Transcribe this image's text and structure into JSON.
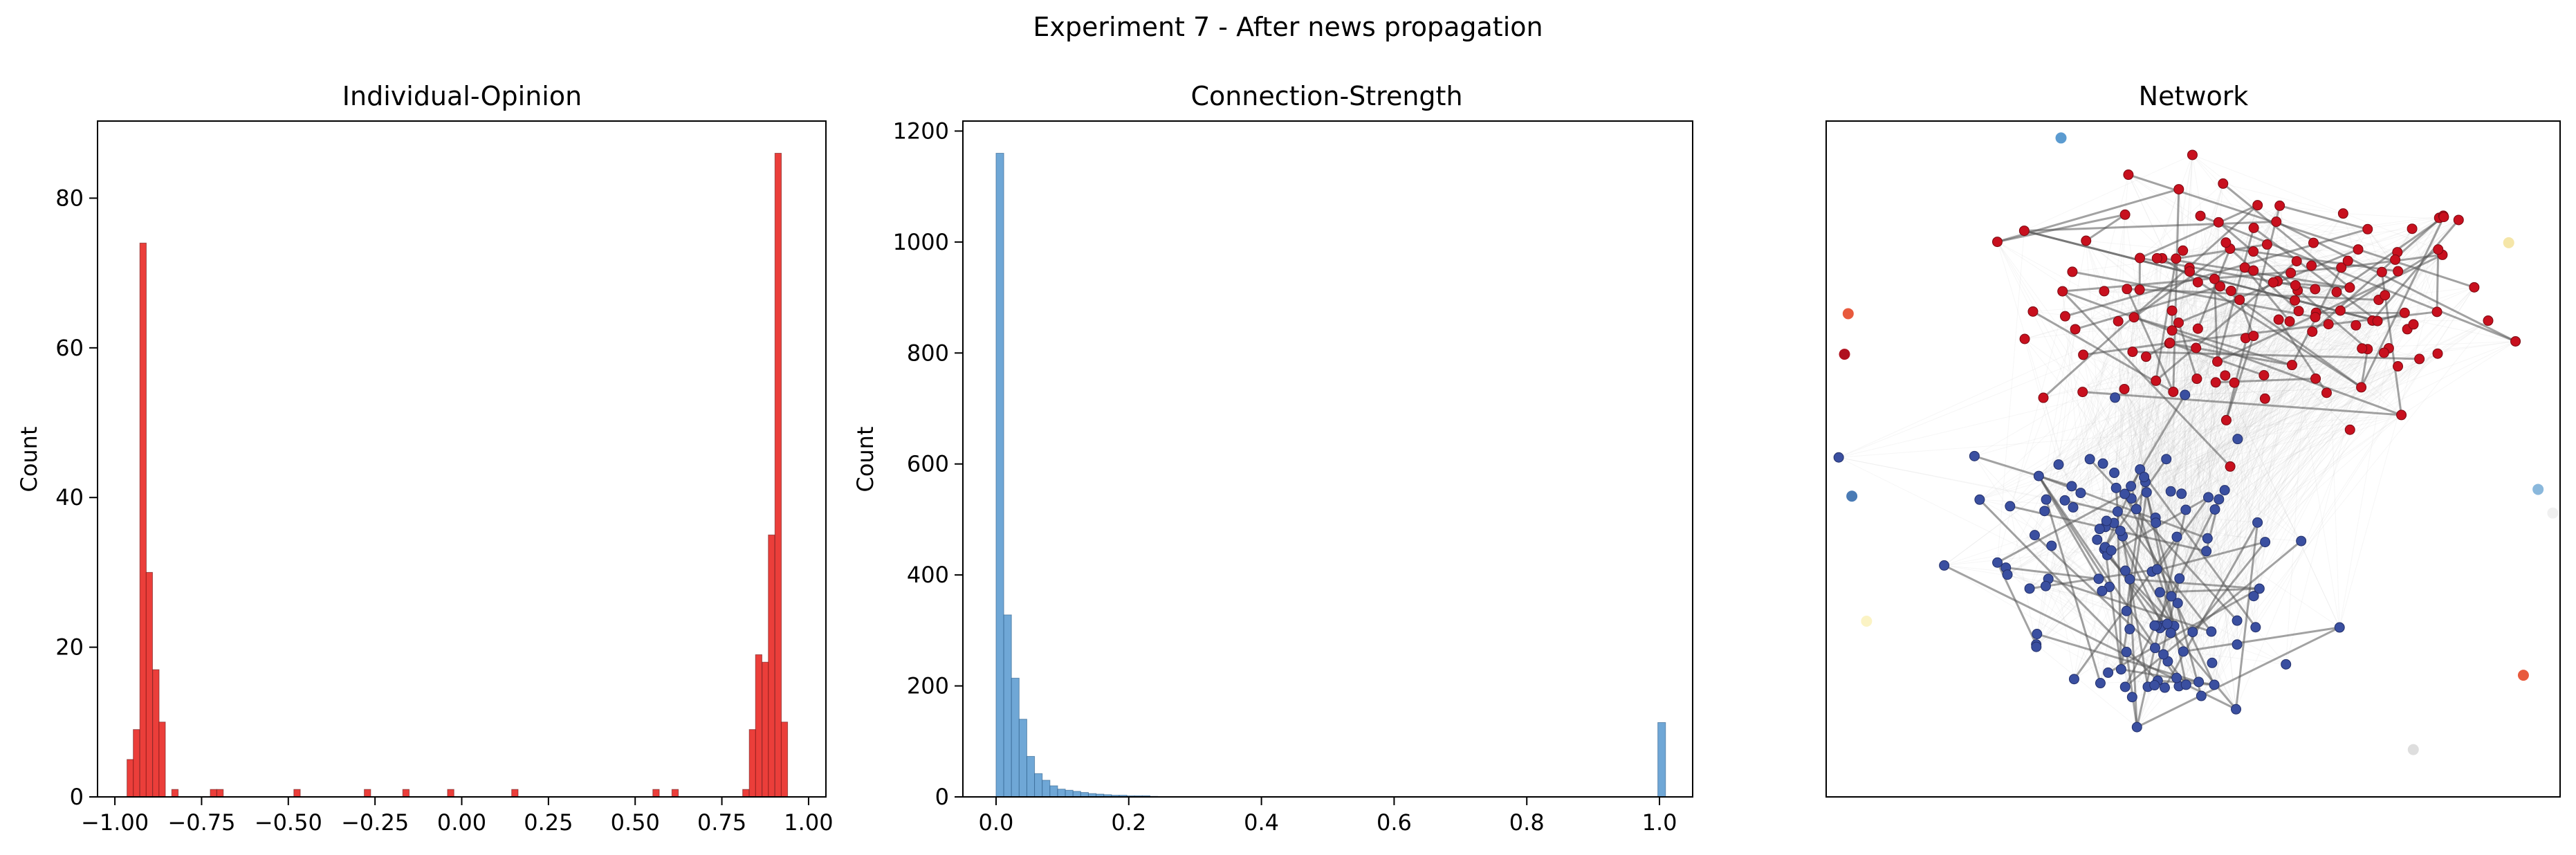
{
  "figure": {
    "suptitle": "Experiment 7 - After news propagation"
  },
  "chart_data": [
    {
      "type": "bar",
      "title": "Individual-Opinion",
      "xlabel": "",
      "ylabel": "Count",
      "xlim": [
        -1.05,
        1.05
      ],
      "ylim": [
        0,
        90.3
      ],
      "xticks": [
        -1.0,
        -0.75,
        -0.5,
        -0.25,
        0.0,
        0.25,
        0.5,
        0.75,
        1.0
      ],
      "xtick_labels": [
        "−1.00",
        "−0.75",
        "−0.50",
        "−0.25",
        "0.00",
        "0.25",
        "0.50",
        "0.75",
        "1.00"
      ],
      "yticks": [
        0,
        20,
        40,
        60,
        80
      ],
      "ytick_labels": [
        "0",
        "20",
        "40",
        "60",
        "80"
      ],
      "bin_width": 0.0185,
      "color": "#e8231f",
      "bins_left": [
        -0.965,
        -0.947,
        -0.928,
        -0.91,
        -0.891,
        -0.873,
        -0.836,
        -0.725,
        -0.706,
        -0.484,
        -0.281,
        -0.17,
        -0.041,
        0.144,
        0.551,
        0.606,
        0.81,
        0.829,
        0.847,
        0.866,
        0.884,
        0.903,
        0.921
      ],
      "values": [
        5,
        9,
        74,
        30,
        17,
        10,
        1,
        1,
        1,
        1,
        1,
        1,
        1,
        1,
        1,
        1,
        1,
        9,
        19,
        18,
        35,
        86,
        10
      ]
    },
    {
      "type": "bar",
      "title": "Connection-Strength",
      "xlabel": "",
      "ylabel": "Count",
      "xlim": [
        -0.05,
        1.05
      ],
      "ylim": [
        0,
        1218
      ],
      "xticks": [
        0.0,
        0.2,
        0.4,
        0.6,
        0.8,
        1.0
      ],
      "xtick_labels": [
        "0.0",
        "0.2",
        "0.4",
        "0.6",
        "0.8",
        "1.0"
      ],
      "yticks": [
        0,
        200,
        400,
        600,
        800,
        1000,
        1200
      ],
      "ytick_labels": [
        "0",
        "200",
        "400",
        "600",
        "800",
        "1000",
        "1200"
      ],
      "bin_width": 0.0116,
      "color": "#5b9bd0",
      "bins_left": [
        0.0,
        0.0116,
        0.0232,
        0.0348,
        0.0464,
        0.058,
        0.0696,
        0.0812,
        0.0928,
        0.1044,
        0.116,
        0.1276,
        0.1392,
        0.1508,
        0.1624,
        0.174,
        0.1856,
        0.1972,
        0.2088,
        0.2204,
        0.232,
        0.9975
      ],
      "values": [
        1160,
        328,
        214,
        140,
        73,
        42,
        30,
        20,
        14,
        12,
        10,
        8,
        6,
        5,
        4,
        3,
        3,
        2,
        2,
        2,
        1,
        134
      ]
    },
    {
      "type": "scatter",
      "title": "Network",
      "xlim": [
        -1.0,
        1.0
      ],
      "ylim": [
        -1.0,
        1.0
      ],
      "axis_ticks": false,
      "positive_color": "#c8101e",
      "negative_color": "#3a4fa0",
      "edge_color": "#b4b4b4",
      "isolated_nodes": [
        {
          "x": -0.36,
          "y": 0.95,
          "color": "#5b9bd0"
        },
        {
          "x": 0.86,
          "y": 0.64,
          "color": "#f5e6a8"
        },
        {
          "x": -0.94,
          "y": 0.43,
          "color": "#e85a3d"
        },
        {
          "x": -0.95,
          "y": 0.31,
          "color": "#b0101e"
        },
        {
          "x": -0.93,
          "y": -0.11,
          "color": "#4a7bb5"
        },
        {
          "x": 0.94,
          "y": -0.09,
          "color": "#8ab8dc"
        },
        {
          "x": 0.98,
          "y": -0.16,
          "color": "#f0f0f0"
        },
        {
          "x": -0.89,
          "y": -0.48,
          "color": "#fbf3c4"
        },
        {
          "x": 0.9,
          "y": -0.64,
          "color": "#e85a3d"
        },
        {
          "x": 0.6,
          "y": -0.86,
          "color": "#dedede"
        }
      ]
    }
  ]
}
